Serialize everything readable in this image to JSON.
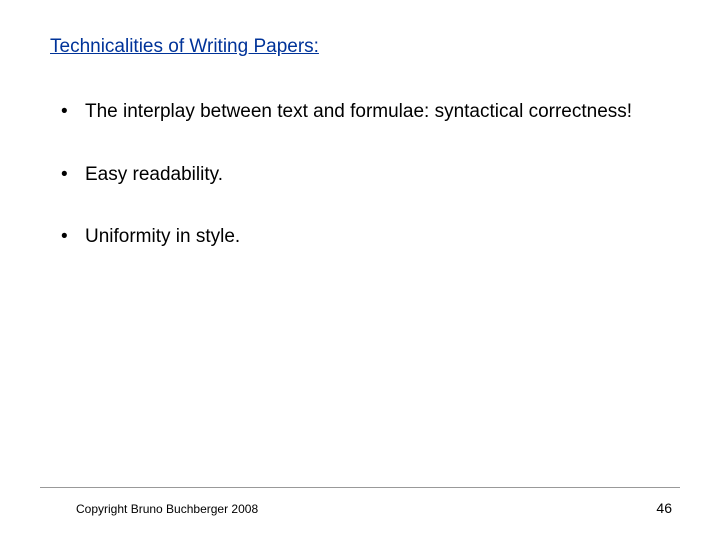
{
  "title": "Technicalities of Writing Papers:",
  "title_color": "#003399",
  "title_fontsize": 19,
  "background_color": "#ffffff",
  "text_color": "#000000",
  "body_fontsize": 19,
  "bullets": [
    "The interplay between text and formulae: syntactical correctness!",
    "Easy readability.",
    "Uniformity in style."
  ],
  "footer": {
    "copyright": "Copyright Bruno Buchberger 2008",
    "page_number": "46",
    "line_color": "#999999",
    "footer_fontsize": 12
  }
}
